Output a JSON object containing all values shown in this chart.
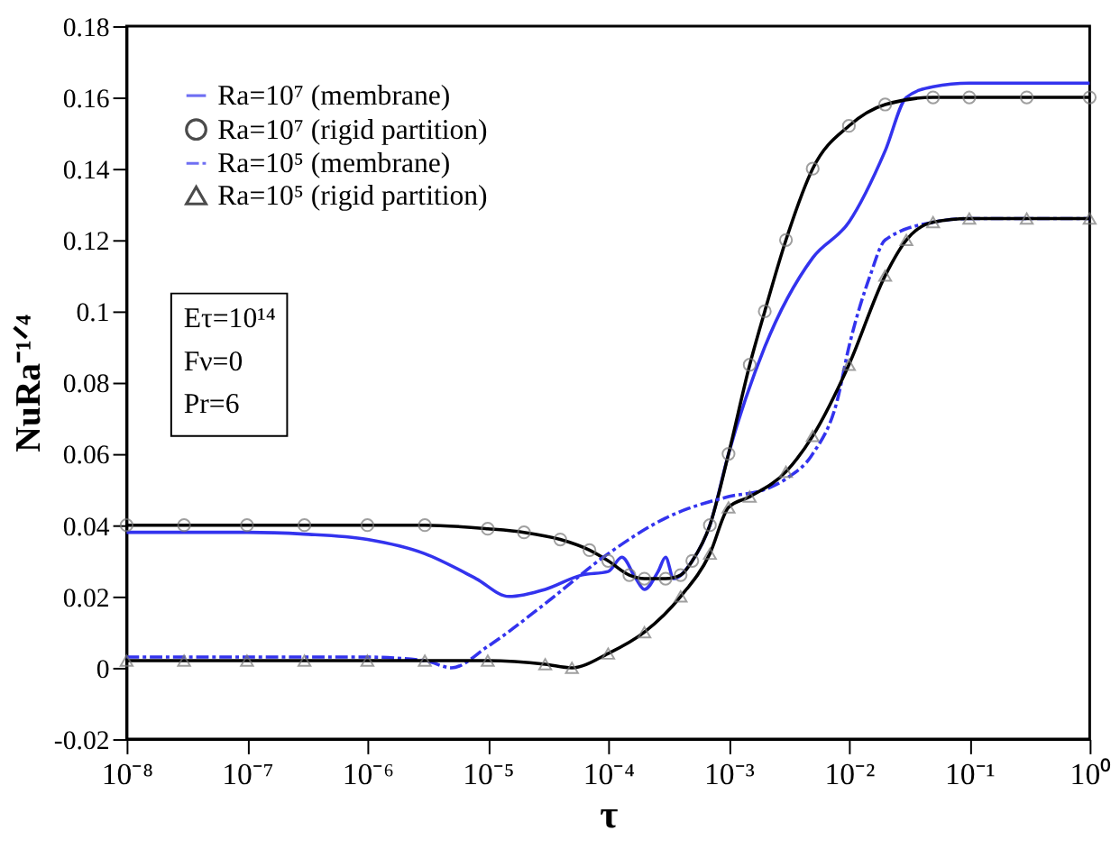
{
  "chart_data": {
    "type": "line",
    "xlabel": "τ",
    "ylabel": "NuRa⁻¹ᐟ⁴",
    "log": "x",
    "grid": false,
    "legend": "top left",
    "xlim": [
      1e-08,
      1
    ],
    "ylim": [
      -0.02,
      0.18
    ],
    "xticks": [
      {
        "value": 1e-08,
        "label": "10⁻⁸"
      },
      {
        "value": 1e-07,
        "label": "10⁻⁷"
      },
      {
        "value": 1e-06,
        "label": "10⁻⁶"
      },
      {
        "value": 1e-05,
        "label": "10⁻⁵"
      },
      {
        "value": 0.0001,
        "label": "10⁻⁴"
      },
      {
        "value": 0.001,
        "label": "10⁻³"
      },
      {
        "value": 0.01,
        "label": "10⁻²"
      },
      {
        "value": 0.1,
        "label": "10⁻¹"
      },
      {
        "value": 1,
        "label": "10⁰"
      }
    ],
    "yticks": [
      -0.02,
      0,
      0.02,
      0.04,
      0.06,
      0.08,
      0.1,
      0.12,
      0.14,
      0.16,
      0.18
    ],
    "annotations": [
      "Eτ=10¹⁴",
      "Fν=0",
      "Pr=6"
    ],
    "series": [
      {
        "name": "Ra=10⁷ (membrane)",
        "color": "#3333ee",
        "line_style": "solid",
        "marker": "none",
        "x": [
          1e-08,
          1e-07,
          3e-07,
          1e-06,
          3e-06,
          8e-06,
          1.5e-05,
          3e-05,
          6e-05,
          0.0001,
          0.00013,
          0.00017,
          0.0002,
          0.00026,
          0.0003,
          0.00035,
          0.0005,
          0.0007,
          0.001,
          0.002,
          0.005,
          0.01,
          0.02,
          0.03,
          0.05,
          0.1,
          1
        ],
        "values": [
          0.038,
          0.038,
          0.0375,
          0.036,
          0.032,
          0.025,
          0.02,
          0.022,
          0.026,
          0.027,
          0.031,
          0.025,
          0.022,
          0.027,
          0.031,
          0.025,
          0.03,
          0.04,
          0.06,
          0.09,
          0.115,
          0.125,
          0.145,
          0.16,
          0.163,
          0.164,
          0.164
        ]
      },
      {
        "name": "Ra=10⁷ (rigid partition)",
        "color": "#000000",
        "line_style": "solid",
        "marker": "circle",
        "x": [
          1e-08,
          3e-08,
          1e-07,
          3e-07,
          1e-06,
          3e-06,
          1e-05,
          2e-05,
          4e-05,
          7e-05,
          0.0001,
          0.00015,
          0.0002,
          0.0003,
          0.0004,
          0.0005,
          0.0007,
          0.001,
          0.0015,
          0.002,
          0.003,
          0.005,
          0.01,
          0.02,
          0.05,
          0.1,
          0.3,
          1
        ],
        "values": [
          0.04,
          0.04,
          0.04,
          0.04,
          0.04,
          0.04,
          0.039,
          0.038,
          0.036,
          0.033,
          0.03,
          0.026,
          0.025,
          0.025,
          0.026,
          0.03,
          0.04,
          0.06,
          0.085,
          0.1,
          0.12,
          0.14,
          0.152,
          0.158,
          0.16,
          0.16,
          0.16,
          0.16
        ]
      },
      {
        "name": "Ra=10⁵ (membrane)",
        "color": "#3333ee",
        "line_style": "dashed",
        "marker": "none",
        "x": [
          1e-08,
          1e-07,
          1e-06,
          3e-06,
          5e-06,
          1e-05,
          3e-05,
          0.0001,
          0.0003,
          0.001,
          0.002,
          0.003,
          0.005,
          0.008,
          0.01,
          0.015,
          0.02,
          0.05,
          0.1,
          1
        ],
        "values": [
          0.003,
          0.003,
          0.003,
          0.002,
          0.0,
          0.006,
          0.018,
          0.032,
          0.042,
          0.048,
          0.05,
          0.053,
          0.06,
          0.075,
          0.09,
          0.11,
          0.12,
          0.125,
          0.126,
          0.126
        ]
      },
      {
        "name": "Ra=10⁵ (rigid partition)",
        "color": "#000000",
        "line_style": "solid",
        "marker": "triangle",
        "x": [
          1e-08,
          3e-08,
          1e-07,
          3e-07,
          1e-06,
          3e-06,
          1e-05,
          3e-05,
          5e-05,
          0.0001,
          0.0002,
          0.0004,
          0.0007,
          0.001,
          0.0015,
          0.003,
          0.005,
          0.01,
          0.02,
          0.03,
          0.05,
          0.1,
          0.3,
          1
        ],
        "values": [
          0.002,
          0.002,
          0.002,
          0.002,
          0.002,
          0.002,
          0.002,
          0.001,
          0.0,
          0.004,
          0.01,
          0.02,
          0.032,
          0.045,
          0.048,
          0.055,
          0.065,
          0.085,
          0.11,
          0.12,
          0.125,
          0.126,
          0.126,
          0.126
        ]
      }
    ]
  }
}
